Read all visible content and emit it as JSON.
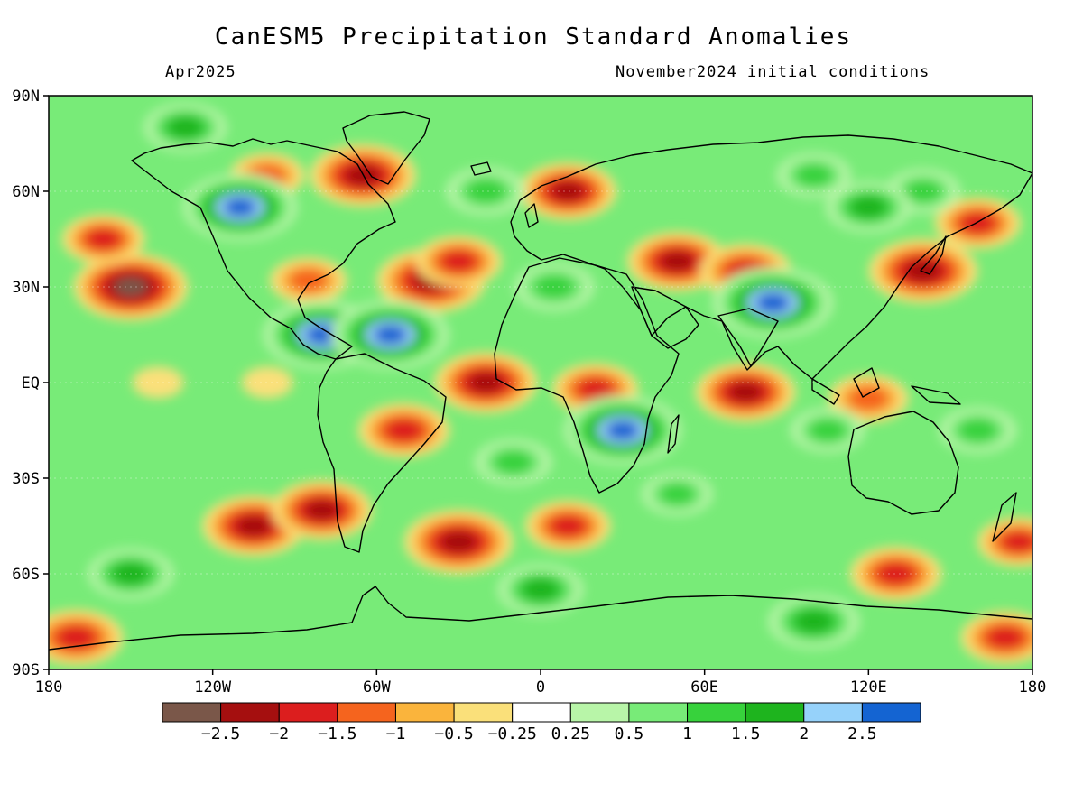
{
  "title": "CanESM5 Precipitation Standard Anomalies",
  "valid_month": "Apr2025",
  "init_conditions": "November2024 initial conditions",
  "map": {
    "projection": "equirectangular",
    "lon_range": [
      -180,
      180
    ],
    "lat_range": [
      -90,
      90
    ],
    "lat_ticks": [
      {
        "lat": 90,
        "label": "90N"
      },
      {
        "lat": 60,
        "label": "60N"
      },
      {
        "lat": 30,
        "label": "30N"
      },
      {
        "lat": 0,
        "label": "EQ"
      },
      {
        "lat": -30,
        "label": "30S"
      },
      {
        "lat": -60,
        "label": "60S"
      },
      {
        "lat": -90,
        "label": "90S"
      }
    ],
    "lon_ticks": [
      {
        "lon": -180,
        "label": "180"
      },
      {
        "lon": -120,
        "label": "120W"
      },
      {
        "lon": -60,
        "label": "60W"
      },
      {
        "lon": 0,
        "label": "0"
      },
      {
        "lon": 60,
        "label": "60E"
      },
      {
        "lon": 120,
        "label": "120E"
      },
      {
        "lon": 180,
        "label": "180"
      }
    ]
  },
  "colorbar": {
    "colors": [
      "#7a5749",
      "#a50f0f",
      "#dc1e1e",
      "#f5641e",
      "#fab43c",
      "#fae07a",
      "#ffffff",
      "#b8f5a8",
      "#78eb78",
      "#37d23c",
      "#1eb41e",
      "#96d2fa",
      "#1464d2"
    ],
    "labels": [
      "-2.5",
      "-2",
      "-1.5",
      "-1",
      "-0.5",
      "-0.25",
      "0.25",
      "0.5",
      "1",
      "1.5",
      "2",
      "2.5"
    ],
    "label_texts": [
      "−2.5",
      "−2",
      "−1.5",
      "−1",
      "−0.5",
      "−0.25",
      "0.25",
      "0.5",
      "1",
      "1.5",
      "2",
      "2.5"
    ]
  },
  "anomaly_regions": [
    {
      "lon": -150,
      "lat": 30,
      "value": -2.6
    },
    {
      "lon": -160,
      "lat": 45,
      "value": -1.5
    },
    {
      "lon": -100,
      "lat": 65,
      "value": -1.2
    },
    {
      "lon": -65,
      "lat": 65,
      "value": -2.3
    },
    {
      "lon": -40,
      "lat": 32,
      "value": -2.4
    },
    {
      "lon": -30,
      "lat": 38,
      "value": -1.6
    },
    {
      "lon": -85,
      "lat": 32,
      "value": -1.3
    },
    {
      "lon": -140,
      "lat": 0,
      "value": -0.4
    },
    {
      "lon": -100,
      "lat": 0,
      "value": -0.4
    },
    {
      "lon": -20,
      "lat": 0,
      "value": -2.2
    },
    {
      "lon": 20,
      "lat": -2,
      "value": -1.6
    },
    {
      "lon": 75,
      "lat": -3,
      "value": -2.1
    },
    {
      "lon": 120,
      "lat": -5,
      "value": -1.4
    },
    {
      "lon": -50,
      "lat": -15,
      "value": -1.8
    },
    {
      "lon": -105,
      "lat": -45,
      "value": -2.2
    },
    {
      "lon": -80,
      "lat": -40,
      "value": -2.1
    },
    {
      "lon": -30,
      "lat": -50,
      "value": -2.4
    },
    {
      "lon": 10,
      "lat": -45,
      "value": -1.6
    },
    {
      "lon": 130,
      "lat": -60,
      "value": -1.8
    },
    {
      "lon": 175,
      "lat": -50,
      "value": -1.5
    },
    {
      "lon": 10,
      "lat": 60,
      "value": -2.0
    },
    {
      "lon": 50,
      "lat": 38,
      "value": -2.1
    },
    {
      "lon": 75,
      "lat": 35,
      "value": -1.8
    },
    {
      "lon": 140,
      "lat": 35,
      "value": -2.4
    },
    {
      "lon": 160,
      "lat": 50,
      "value": -1.6
    },
    {
      "lon": -170,
      "lat": -80,
      "value": -1.9
    },
    {
      "lon": 170,
      "lat": -80,
      "value": -1.7
    },
    {
      "lon": 140,
      "lat": 60,
      "value": 1.2
    },
    {
      "lon": 120,
      "lat": 55,
      "value": 1.6
    },
    {
      "lon": 100,
      "lat": 65,
      "value": 1.2
    },
    {
      "lon": 85,
      "lat": 25,
      "value": 2.8
    },
    {
      "lon": 30,
      "lat": -15,
      "value": 2.7
    },
    {
      "lon": -80,
      "lat": 15,
      "value": 2.7
    },
    {
      "lon": -55,
      "lat": 15,
      "value": 2.7
    },
    {
      "lon": -150,
      "lat": -60,
      "value": 1.6
    },
    {
      "lon": 0,
      "lat": -65,
      "value": 1.6
    },
    {
      "lon": 100,
      "lat": -75,
      "value": 1.8
    },
    {
      "lon": -20,
      "lat": 60,
      "value": 1.4
    },
    {
      "lon": -110,
      "lat": 55,
      "value": 2.6
    },
    {
      "lon": 5,
      "lat": 30,
      "value": 1.4
    },
    {
      "lon": 105,
      "lat": -15,
      "value": 1.2
    },
    {
      "lon": 160,
      "lat": -15,
      "value": 1.3
    },
    {
      "lon": -10,
      "lat": -25,
      "value": 1.3
    },
    {
      "lon": 50,
      "lat": -35,
      "value": 1.1
    },
    {
      "lon": -130,
      "lat": 80,
      "value": 1.5
    }
  ]
}
